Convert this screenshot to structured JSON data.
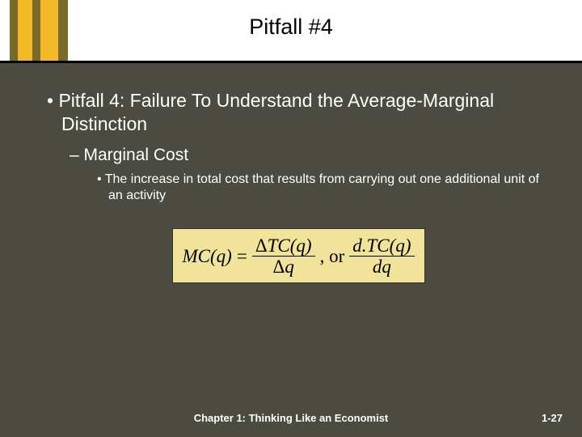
{
  "header": {
    "title": "Pitfall #4",
    "stripe_colors": [
      "#7a6a2a",
      "#f2b826",
      "#7a6a2a",
      "#f2b826",
      "#7a6a2a"
    ]
  },
  "body": {
    "bullet1": "• Pitfall 4: Failure To Understand the Average-Marginal Distinction",
    "bullet2": "– Marginal Cost",
    "bullet3": "• The increase in total cost that results from carrying out one additional unit of an activity"
  },
  "formula": {
    "lhs": "MC(q)",
    "eq1": "=",
    "frac1_num": "ΔTC(q)",
    "frac1_den": "Δq",
    "mid": ", or",
    "frac2_num": "d.TC(q)",
    "frac2_den": "dq",
    "background": "#f2e39a"
  },
  "footer": {
    "chapter": "Chapter 1: Thinking Like an Economist",
    "page": "1-27"
  },
  "colors": {
    "slide_bg": "#4b4b42",
    "header_bg": "#ffffff",
    "text_light": "#ffffff",
    "text_dark": "#000000"
  }
}
